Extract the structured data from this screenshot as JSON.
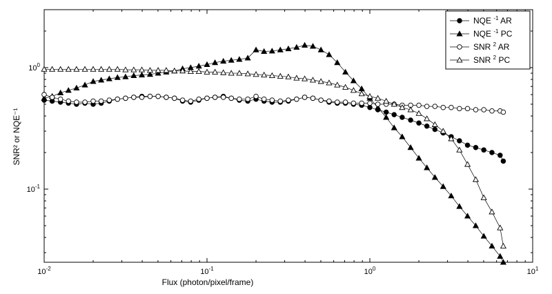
{
  "chart_data": {
    "type": "line",
    "xscale": "log",
    "yscale": "log",
    "xlim": [
      0.01,
      10
    ],
    "ylim": [
      0.025,
      3
    ],
    "xlabel": "Flux (photon/pixel/frame)",
    "ylabel": "SNR² or NQE⁻¹",
    "x_ticks": [
      {
        "value": 0.01,
        "base": "10",
        "exp": "-2"
      },
      {
        "value": 0.1,
        "base": "10",
        "exp": "-1"
      },
      {
        "value": 1,
        "base": "10",
        "exp": "0"
      },
      {
        "value": 10,
        "base": "10",
        "exp": "1"
      }
    ],
    "y_ticks": [
      {
        "value": 0.1,
        "base": "10",
        "exp": "-1"
      },
      {
        "value": 1,
        "base": "10",
        "exp": "0"
      }
    ],
    "grid": false,
    "legend_position": "top-right",
    "series": [
      {
        "name": "NQE ⁻¹ AR",
        "label_main": "NQE",
        "label_sup": "-1",
        "label_tail": "AR",
        "marker": "circle",
        "filled": true,
        "x": [
          0.01,
          0.0112,
          0.0126,
          0.0141,
          0.0158,
          0.0178,
          0.02,
          0.0224,
          0.0251,
          0.0282,
          0.0316,
          0.0355,
          0.0398,
          0.0447,
          0.0501,
          0.0562,
          0.0631,
          0.0708,
          0.0794,
          0.0891,
          0.1,
          0.112,
          0.126,
          0.141,
          0.158,
          0.178,
          0.2,
          0.224,
          0.251,
          0.282,
          0.316,
          0.355,
          0.398,
          0.447,
          0.501,
          0.562,
          0.631,
          0.708,
          0.794,
          0.891,
          1.0,
          1.12,
          1.26,
          1.41,
          1.58,
          1.78,
          2.0,
          2.24,
          2.51,
          2.82,
          3.16,
          3.55,
          3.98,
          4.47,
          5.01,
          5.62,
          6.31,
          6.6
        ],
        "y": [
          0.54,
          0.53,
          0.52,
          0.51,
          0.5,
          0.51,
          0.5,
          0.51,
          0.53,
          0.55,
          0.56,
          0.57,
          0.58,
          0.58,
          0.58,
          0.57,
          0.56,
          0.53,
          0.52,
          0.54,
          0.56,
          0.57,
          0.58,
          0.56,
          0.54,
          0.53,
          0.55,
          0.53,
          0.52,
          0.52,
          0.53,
          0.55,
          0.57,
          0.56,
          0.54,
          0.52,
          0.51,
          0.51,
          0.5,
          0.49,
          0.47,
          0.45,
          0.43,
          0.41,
          0.39,
          0.37,
          0.35,
          0.33,
          0.31,
          0.29,
          0.27,
          0.25,
          0.23,
          0.22,
          0.21,
          0.2,
          0.19,
          0.17
        ]
      },
      {
        "name": "NQE ⁻¹ PC",
        "label_main": "NQE",
        "label_sup": "-1",
        "label_tail": "PC",
        "marker": "triangle",
        "filled": true,
        "x": [
          0.01,
          0.0112,
          0.0126,
          0.0141,
          0.0158,
          0.0178,
          0.02,
          0.0224,
          0.0251,
          0.0282,
          0.0316,
          0.0355,
          0.0398,
          0.0447,
          0.0501,
          0.0562,
          0.0631,
          0.0708,
          0.0794,
          0.0891,
          0.1,
          0.112,
          0.126,
          0.141,
          0.158,
          0.178,
          0.2,
          0.224,
          0.251,
          0.282,
          0.316,
          0.355,
          0.398,
          0.447,
          0.501,
          0.562,
          0.631,
          0.708,
          0.794,
          0.891,
          1.0,
          1.12,
          1.26,
          1.41,
          1.58,
          1.78,
          2.0,
          2.24,
          2.51,
          2.82,
          3.16,
          3.55,
          3.98,
          4.47,
          5.01,
          5.62,
          6.31,
          6.6
        ],
        "y": [
          0.56,
          0.58,
          0.62,
          0.65,
          0.68,
          0.72,
          0.77,
          0.79,
          0.81,
          0.83,
          0.84,
          0.86,
          0.87,
          0.88,
          0.9,
          0.92,
          0.94,
          0.98,
          1.0,
          1.03,
          1.06,
          1.1,
          1.13,
          1.15,
          1.17,
          1.2,
          1.4,
          1.36,
          1.37,
          1.4,
          1.43,
          1.47,
          1.53,
          1.5,
          1.4,
          1.28,
          1.1,
          0.92,
          0.78,
          0.67,
          0.56,
          0.47,
          0.39,
          0.32,
          0.27,
          0.22,
          0.18,
          0.15,
          0.125,
          0.105,
          0.088,
          0.072,
          0.06,
          0.05,
          0.041,
          0.034,
          0.028,
          0.025
        ]
      },
      {
        "name": "SNR² AR",
        "label_main": "SNR",
        "label_sup": "2",
        "label_tail": "AR",
        "marker": "circle",
        "filled": false,
        "x": [
          0.01,
          0.0112,
          0.0126,
          0.0141,
          0.0158,
          0.0178,
          0.02,
          0.0224,
          0.0251,
          0.0282,
          0.0316,
          0.0355,
          0.0398,
          0.0447,
          0.0501,
          0.0562,
          0.0631,
          0.0708,
          0.0794,
          0.0891,
          0.1,
          0.112,
          0.126,
          0.141,
          0.158,
          0.178,
          0.2,
          0.224,
          0.251,
          0.282,
          0.316,
          0.355,
          0.398,
          0.447,
          0.501,
          0.562,
          0.631,
          0.708,
          0.794,
          0.891,
          1.0,
          1.12,
          1.26,
          1.41,
          1.58,
          1.78,
          2.0,
          2.24,
          2.51,
          2.82,
          3.16,
          3.55,
          3.98,
          4.47,
          5.01,
          5.62,
          6.31,
          6.6
        ],
        "y": [
          0.6,
          0.57,
          0.55,
          0.53,
          0.52,
          0.52,
          0.53,
          0.53,
          0.54,
          0.55,
          0.56,
          0.57,
          0.57,
          0.58,
          0.58,
          0.57,
          0.56,
          0.54,
          0.53,
          0.55,
          0.56,
          0.57,
          0.57,
          0.56,
          0.55,
          0.55,
          0.58,
          0.55,
          0.54,
          0.53,
          0.54,
          0.55,
          0.57,
          0.56,
          0.54,
          0.53,
          0.52,
          0.52,
          0.51,
          0.51,
          0.51,
          0.5,
          0.5,
          0.5,
          0.49,
          0.49,
          0.49,
          0.48,
          0.48,
          0.47,
          0.47,
          0.46,
          0.46,
          0.45,
          0.45,
          0.44,
          0.44,
          0.43
        ]
      },
      {
        "name": "SNR² PC",
        "label_main": "SNR",
        "label_sup": "2",
        "label_tail": "PC",
        "marker": "triangle",
        "filled": false,
        "x": [
          0.01,
          0.0112,
          0.0126,
          0.0141,
          0.0158,
          0.0178,
          0.02,
          0.0224,
          0.0251,
          0.0282,
          0.0316,
          0.0355,
          0.0398,
          0.0447,
          0.0501,
          0.0562,
          0.0631,
          0.0708,
          0.0794,
          0.0891,
          0.1,
          0.112,
          0.126,
          0.141,
          0.158,
          0.178,
          0.2,
          0.224,
          0.251,
          0.282,
          0.316,
          0.355,
          0.398,
          0.447,
          0.501,
          0.562,
          0.631,
          0.708,
          0.794,
          0.891,
          1.0,
          1.12,
          1.26,
          1.41,
          1.58,
          1.78,
          2.0,
          2.24,
          2.51,
          2.82,
          3.16,
          3.55,
          3.98,
          4.47,
          5.01,
          5.62,
          6.31,
          6.6
        ],
        "y": [
          0.97,
          0.97,
          0.97,
          0.97,
          0.97,
          0.97,
          0.97,
          0.97,
          0.97,
          0.97,
          0.96,
          0.96,
          0.96,
          0.95,
          0.95,
          0.95,
          0.94,
          0.94,
          0.93,
          0.93,
          0.92,
          0.92,
          0.91,
          0.9,
          0.9,
          0.89,
          0.88,
          0.87,
          0.86,
          0.85,
          0.84,
          0.82,
          0.81,
          0.79,
          0.77,
          0.75,
          0.72,
          0.69,
          0.65,
          0.61,
          0.58,
          0.56,
          0.53,
          0.5,
          0.47,
          0.45,
          0.42,
          0.38,
          0.34,
          0.3,
          0.26,
          0.21,
          0.16,
          0.12,
          0.085,
          0.065,
          0.048,
          0.034
        ]
      }
    ]
  }
}
